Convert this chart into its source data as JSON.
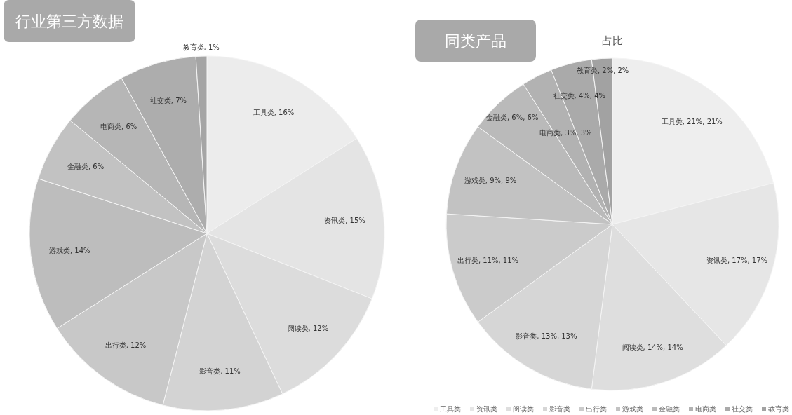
{
  "chart_data": [
    {
      "type": "pie",
      "title": "行业第三方数据",
      "categories": [
        "工具类",
        "资讯类",
        "阅读类",
        "影音类",
        "出行类",
        "游戏类",
        "金融类",
        "电商类",
        "社交类",
        "教育类"
      ],
      "values": [
        16,
        15,
        12,
        11,
        12,
        14,
        6,
        6,
        7,
        1
      ],
      "colors": [
        "#ececec",
        "#e4e4e4",
        "#dcdcdc",
        "#d3d3d3",
        "#c8c8c8",
        "#bdbdbd",
        "#c2c2c2",
        "#b6b6b6",
        "#adadad",
        "#a5a5a5"
      ],
      "value_labels": [
        ", 16%",
        ", 15%",
        ", 12%",
        ", 11%",
        ", 12%",
        ", 14%",
        ", 6%",
        ", 6%",
        ", 7%",
        ", 1%"
      ]
    },
    {
      "type": "pie",
      "title": "同类产品",
      "subtitle": "占比",
      "categories": [
        "工具类",
        "资讯类",
        "阅读类",
        "影音类",
        "出行类",
        "游戏类",
        "金融类",
        "电商类",
        "社交类",
        "教育类"
      ],
      "values": [
        21,
        17,
        14,
        13,
        11,
        9,
        6,
        3,
        4,
        2
      ],
      "colors": [
        "#eeeeee",
        "#e6e6e6",
        "#dedede",
        "#d6d6d6",
        "#cbcbcb",
        "#c2c2c2",
        "#bababa",
        "#b2b2b2",
        "#aaaaaa",
        "#a2a2a2"
      ],
      "value_labels": [
        ", 21%, 21%",
        ", 17%, 17%",
        ", 14%, 14%",
        ", 13%, 13%",
        ", 11%, 11%",
        ", 9%, 9%",
        ", 6%, 6%",
        ", 3%, 3%",
        ", 4%, 4%",
        ", 2%, 2%"
      ],
      "legend": "bottom"
    }
  ]
}
